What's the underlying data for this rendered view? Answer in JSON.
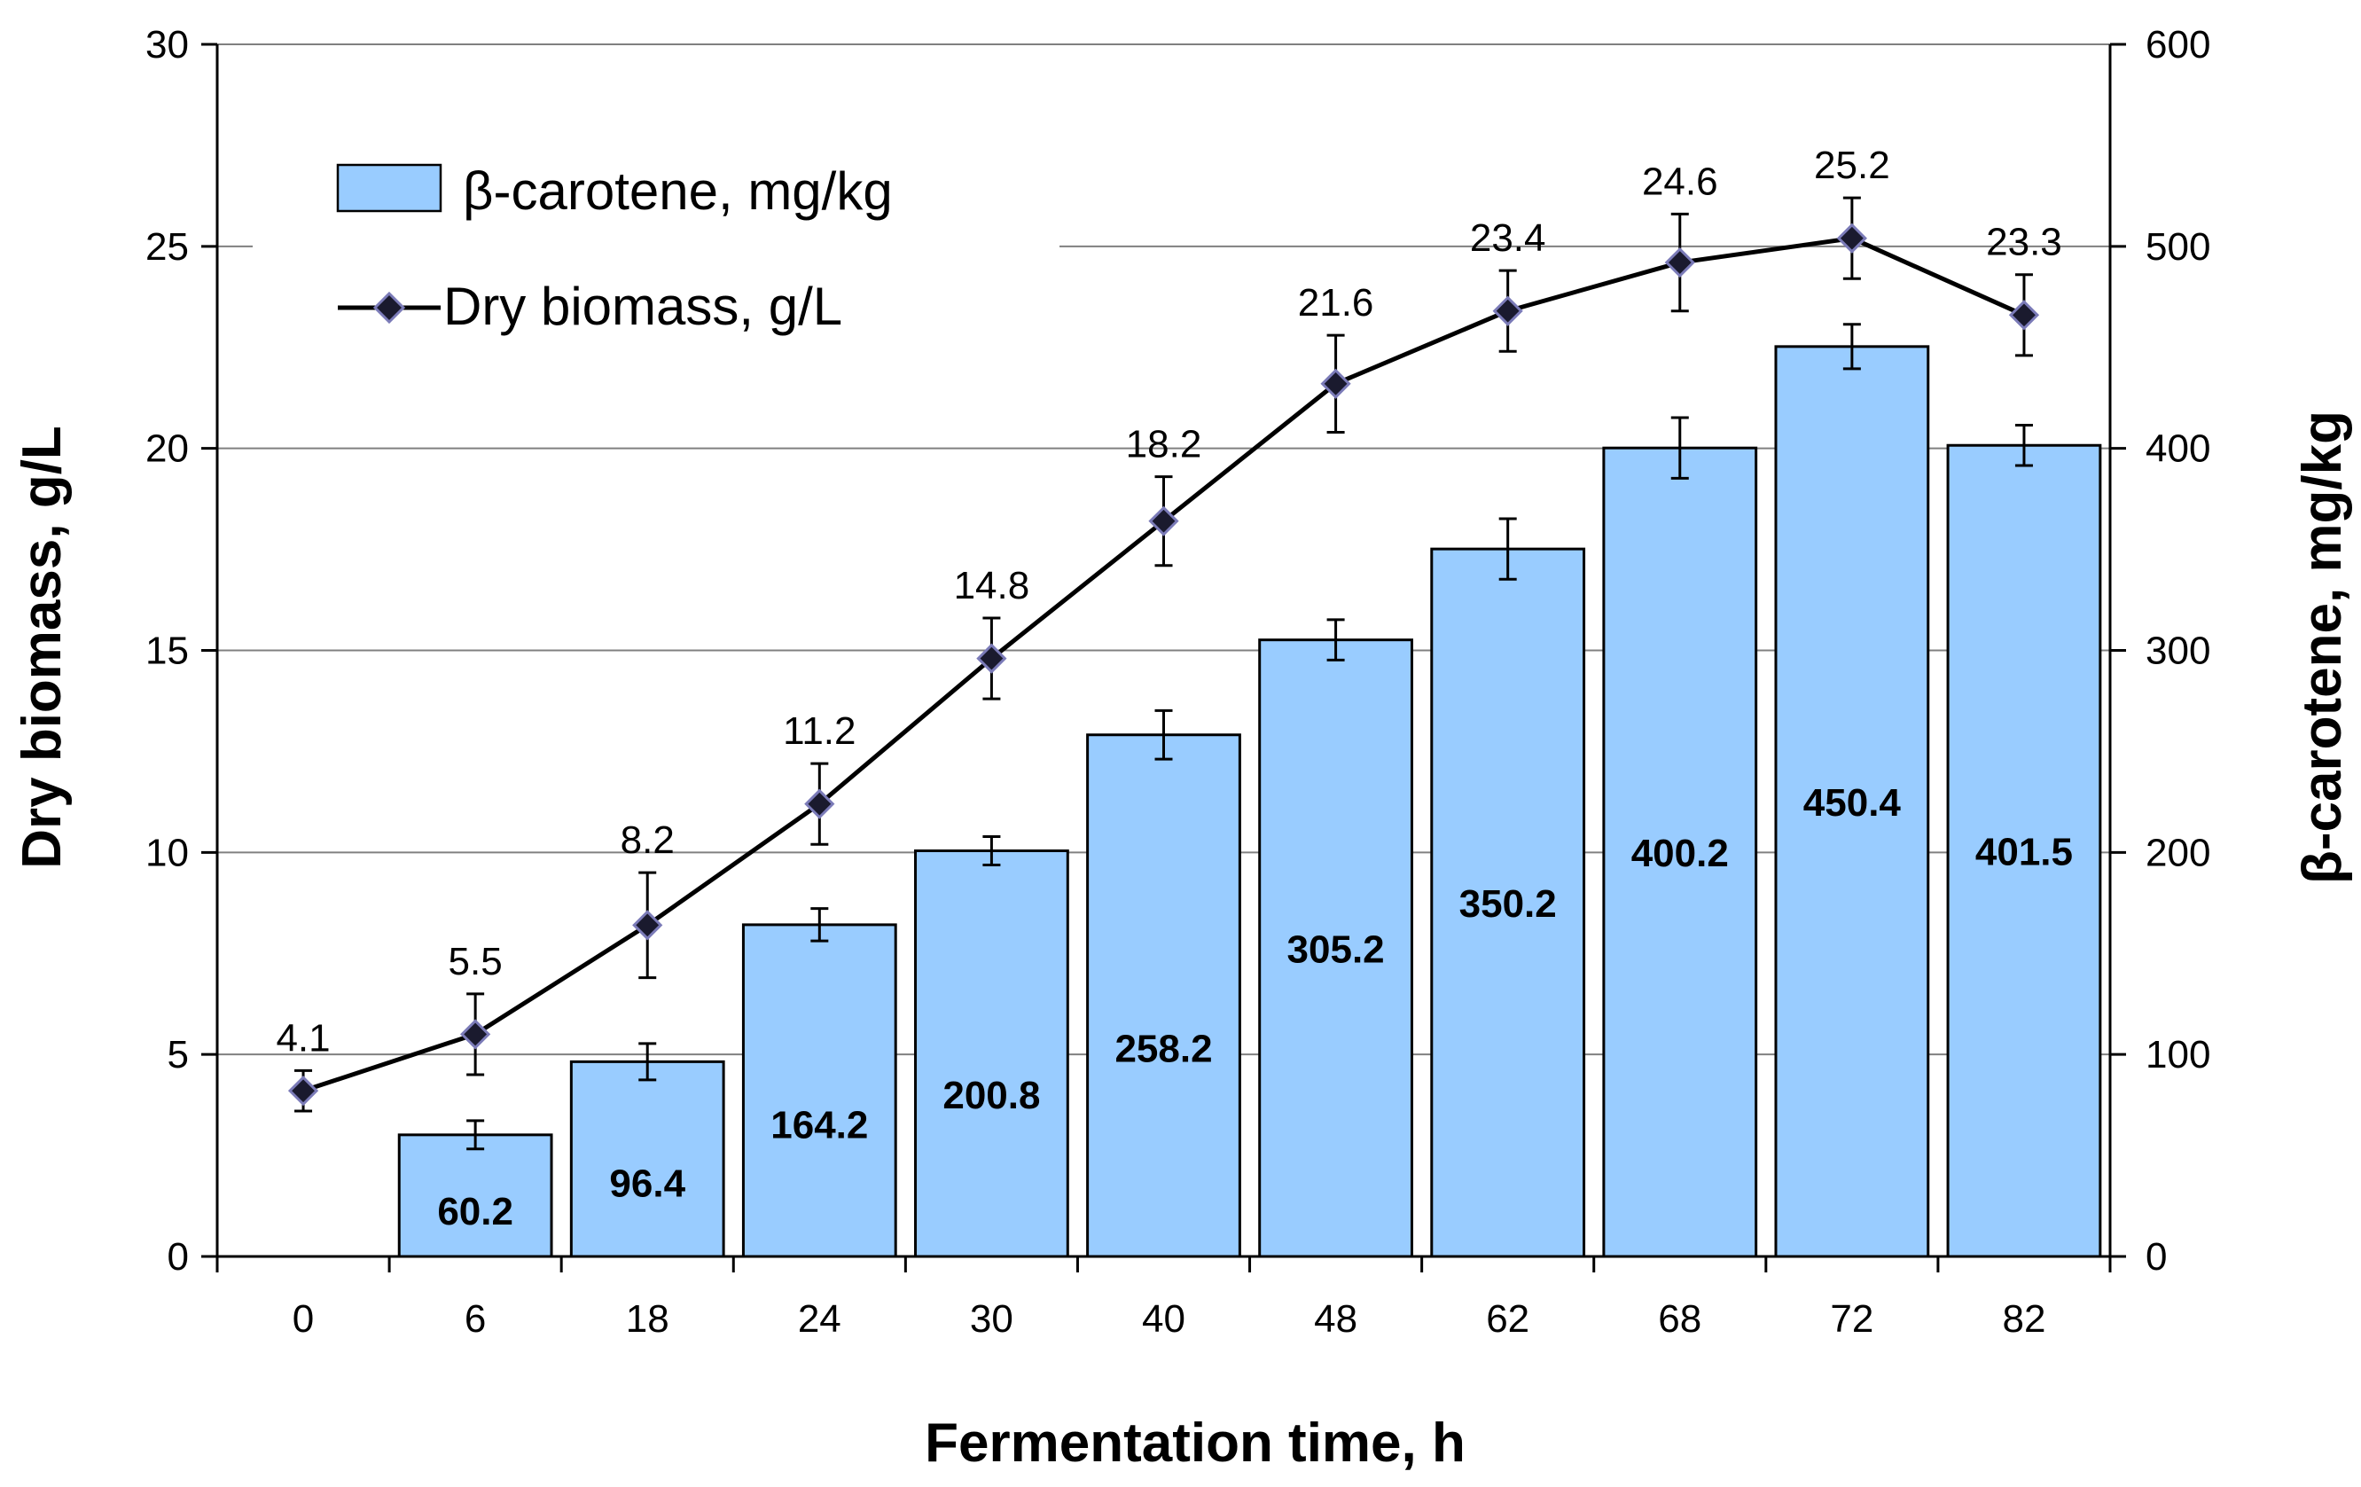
{
  "chart_data": {
    "type": "bar+line",
    "title": "",
    "xlabel": "Fermentation time, h",
    "ylabel_left": "Dry biomass, g/L",
    "ylabel_right": "β-carotene, mg/kg",
    "ylim_left": [
      0,
      30
    ],
    "ylim_right": [
      0,
      600
    ],
    "yticks_left": [
      "0",
      "5",
      "10",
      "15",
      "20",
      "25",
      "30"
    ],
    "yticks_right": [
      "0",
      "100",
      "200",
      "300",
      "400",
      "500",
      "600"
    ],
    "categories": [
      "0",
      "6",
      "18",
      "24",
      "30",
      "40",
      "48",
      "62",
      "68",
      "72",
      "82"
    ],
    "grid": "horizontal major gridlines",
    "legend_position": "top-left",
    "series": [
      {
        "name": "β-carotene, mg/kg",
        "type": "bar",
        "axis": "right",
        "color": "#99ccff",
        "values": [
          null,
          60.2,
          96.4,
          164.2,
          200.8,
          258.2,
          305.2,
          350.2,
          400.2,
          450.4,
          401.5
        ],
        "labels": [
          "",
          "60.2",
          "96.4",
          "164.2",
          "200.8",
          "258.2",
          "305.2",
          "350.2",
          "400.2",
          "450.4",
          "401.5"
        ],
        "errors": [
          null,
          7,
          9,
          8,
          7,
          12,
          10,
          15,
          15,
          11,
          10
        ]
      },
      {
        "name": "Dry biomass, g/L",
        "type": "line",
        "axis": "left",
        "color": "#000000",
        "marker_color": "#1a1a2e",
        "marker_edge_color": "#7b7bb8",
        "values": [
          4.1,
          5.5,
          8.2,
          11.2,
          14.8,
          18.2,
          21.6,
          23.4,
          24.6,
          25.2,
          23.3
        ],
        "labels": [
          "4.1",
          "5.5",
          "8.2",
          "11.2",
          "14.8",
          "18.2",
          "21.6",
          "23.4",
          "24.6",
          "25.2",
          "23.3"
        ],
        "errors": [
          0.5,
          1.0,
          1.3,
          1.0,
          1.0,
          1.1,
          1.2,
          1.0,
          1.2,
          1.0,
          1.0
        ]
      }
    ]
  }
}
